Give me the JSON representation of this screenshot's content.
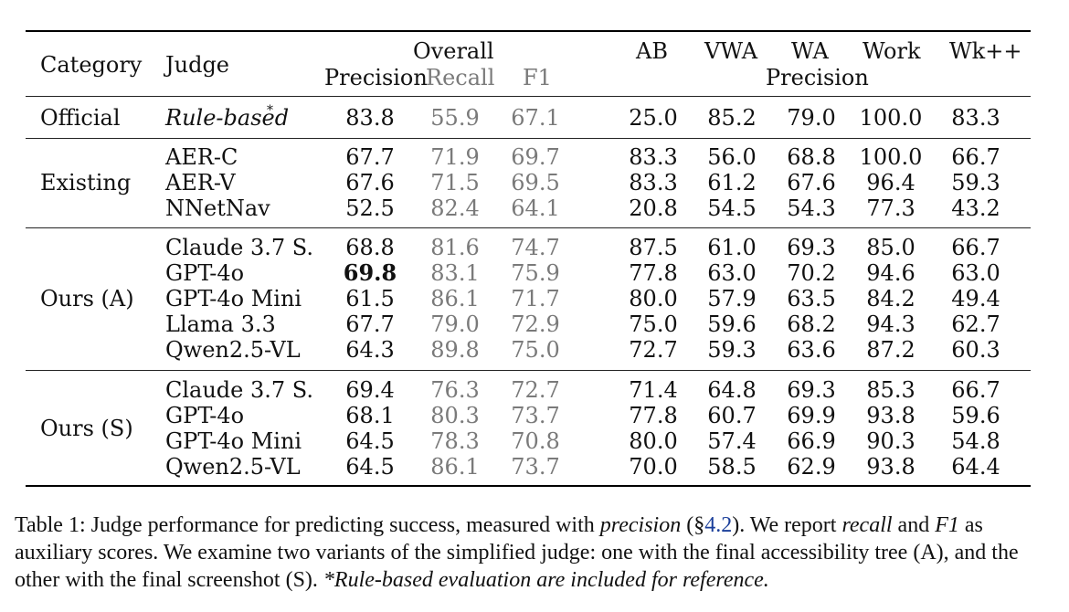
{
  "header": {
    "category": "Category",
    "judge": "Judge",
    "overall": "Overall",
    "precision": "Precision",
    "recall": "Recall",
    "f1": "F1",
    "ab": "AB",
    "vwa": "VWA",
    "wa": "WA",
    "work": "Work",
    "wkpp": "Wk++",
    "precision2": "Precision"
  },
  "groups": [
    {
      "category": "Official",
      "rows": [
        {
          "judge": "Rule-based",
          "italic": true,
          "sup": "*",
          "precision": "83.8",
          "recall": "55.9",
          "f1": "67.1",
          "ab": "25.0",
          "vwa": "85.2",
          "wa": "79.0",
          "work": "100.0",
          "wkpp": "83.3"
        }
      ]
    },
    {
      "category": "Existing",
      "rows": [
        {
          "judge": "AER-C",
          "precision": "67.7",
          "recall": "71.9",
          "f1": "69.7",
          "ab": "83.3",
          "vwa": "56.0",
          "wa": "68.8",
          "work": "100.0",
          "wkpp": "66.7"
        },
        {
          "judge": "AER-V",
          "precision": "67.6",
          "recall": "71.5",
          "f1": "69.5",
          "ab": "83.3",
          "vwa": "61.2",
          "wa": "67.6",
          "work": "96.4",
          "wkpp": "59.3"
        },
        {
          "judge": "NNetNav",
          "precision": "52.5",
          "recall": "82.4",
          "f1": "64.1",
          "ab": "20.8",
          "vwa": "54.5",
          "wa": "54.3",
          "work": "77.3",
          "wkpp": "43.2"
        }
      ]
    },
    {
      "category": "Ours (A)",
      "rows": [
        {
          "judge": "Claude 3.7 S.",
          "precision": "68.8",
          "recall": "81.6",
          "f1": "74.7",
          "ab": "87.5",
          "vwa": "61.0",
          "wa": "69.3",
          "work": "85.0",
          "wkpp": "66.7"
        },
        {
          "judge": "GPT-4o",
          "precision": "69.8",
          "bold": true,
          "recall": "83.1",
          "f1": "75.9",
          "ab": "77.8",
          "vwa": "63.0",
          "wa": "70.2",
          "work": "94.6",
          "wkpp": "63.0"
        },
        {
          "judge": "GPT-4o Mini",
          "precision": "61.5",
          "recall": "86.1",
          "f1": "71.7",
          "ab": "80.0",
          "vwa": "57.9",
          "wa": "63.5",
          "work": "84.2",
          "wkpp": "49.4"
        },
        {
          "judge": "Llama 3.3",
          "precision": "67.7",
          "recall": "79.0",
          "f1": "72.9",
          "ab": "75.0",
          "vwa": "59.6",
          "wa": "68.2",
          "work": "94.3",
          "wkpp": "62.7"
        },
        {
          "judge": "Qwen2.5-VL",
          "precision": "64.3",
          "recall": "89.8",
          "f1": "75.0",
          "ab": "72.7",
          "vwa": "59.3",
          "wa": "63.6",
          "work": "87.2",
          "wkpp": "60.3"
        }
      ]
    },
    {
      "category": "Ours (S)",
      "rows": [
        {
          "judge": "Claude 3.7 S.",
          "precision": "69.4",
          "recall": "76.3",
          "f1": "72.7",
          "ab": "71.4",
          "vwa": "64.8",
          "wa": "69.3",
          "work": "85.3",
          "wkpp": "66.7"
        },
        {
          "judge": "GPT-4o",
          "precision": "68.1",
          "recall": "80.3",
          "f1": "73.7",
          "ab": "77.8",
          "vwa": "60.7",
          "wa": "69.9",
          "work": "93.8",
          "wkpp": "59.6"
        },
        {
          "judge": "GPT-4o Mini",
          "precision": "64.5",
          "recall": "78.3",
          "f1": "70.8",
          "ab": "80.0",
          "vwa": "57.4",
          "wa": "66.9",
          "work": "90.3",
          "wkpp": "54.8"
        },
        {
          "judge": "Qwen2.5-VL",
          "precision": "64.5",
          "recall": "86.1",
          "f1": "73.7",
          "ab": "70.0",
          "vwa": "58.5",
          "wa": "62.9",
          "work": "93.8",
          "wkpp": "64.4"
        }
      ]
    }
  ],
  "caption": {
    "p1": "Table 1: Judge performance for predicting success, measured with ",
    "precision_word": "precision",
    "p2": " (§",
    "ref": "4.2",
    "p3": "). We report ",
    "recall_word": "recall",
    "p4": " and ",
    "f1_word": "F1",
    "p5": " as auxiliary scores. We examine two variants of the simplified judge: one with the final accessibility tree (A), and the other with the final screenshot (S). ",
    "note": "*Rule-based evaluation are included for reference."
  }
}
